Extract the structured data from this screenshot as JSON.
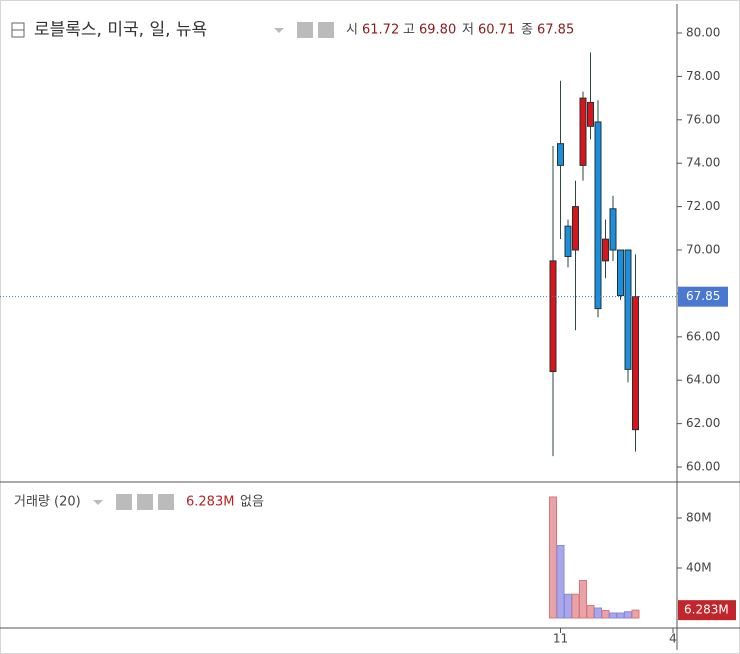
{
  "chart_data": [
    {
      "type": "candlestick",
      "title": "로블록스, 미국, 일, 뉴욕",
      "ohlc_labels": [
        "시",
        "고",
        "저",
        "종"
      ],
      "ohlc_value_labels": [
        "61.72",
        "69.80",
        "60.71",
        "67.85"
      ],
      "open": [
        64.4,
        74.9,
        71.1,
        70.0,
        73.9,
        75.7,
        75.9,
        69.5,
        71.9,
        70.0,
        70.0,
        61.72
      ],
      "high": [
        74.8,
        77.8,
        71.4,
        73.2,
        77.3,
        79.1,
        76.9,
        71.4,
        72.5,
        70.0,
        70.0,
        69.8
      ],
      "low": [
        60.5,
        70.5,
        69.2,
        66.3,
        73.2,
        75.1,
        66.9,
        68.7,
        69.5,
        67.7,
        63.9,
        60.71
      ],
      "close": [
        69.5,
        73.9,
        69.7,
        72.0,
        77.0,
        76.8,
        67.3,
        70.5,
        70.0,
        67.9,
        64.5,
        67.85
      ],
      "up_color": "#d9141b",
      "down_color": "#1b8fdc",
      "ylim": [
        59.31,
        81.29
      ],
      "yticks": [
        {
          "value": 60,
          "label": "60.00"
        },
        {
          "value": 62,
          "label": "62.00"
        },
        {
          "value": 64,
          "label": "64.00"
        },
        {
          "value": 66,
          "label": "66.00"
        },
        {
          "value": 68,
          "label": "68.00"
        },
        {
          "value": 70,
          "label": "70.00"
        },
        {
          "value": 72,
          "label": "72.00"
        },
        {
          "value": 74,
          "label": "74.00"
        },
        {
          "value": 76,
          "label": "76.00"
        },
        {
          "value": 78,
          "label": "78.00"
        },
        {
          "value": 80,
          "label": "80.00"
        }
      ],
      "last_price": {
        "value": 67.85,
        "label": "67.85"
      },
      "last_price_color": "#4a78d0",
      "xticks": [
        {
          "value": 1,
          "label": "11"
        },
        {
          "value": 16,
          "label": "4"
        }
      ]
    },
    {
      "type": "bar",
      "title": "거래량 (20)",
      "value_label": "6.283M",
      "status": "없음",
      "values": [
        96.8,
        58,
        19,
        19,
        30,
        10,
        8,
        6,
        4,
        4,
        5,
        6.283
      ],
      "up_color": "#e8a3a8",
      "down_color": "#a9a7ec",
      "ylim": [
        -8,
        108.8
      ],
      "yticks": [
        {
          "value": 40,
          "label": "40M"
        },
        {
          "value": 80,
          "label": "80M"
        }
      ],
      "last_value": {
        "value": 6.283,
        "label": "6.283M"
      },
      "last_value_color": "#c0262c"
    }
  ]
}
